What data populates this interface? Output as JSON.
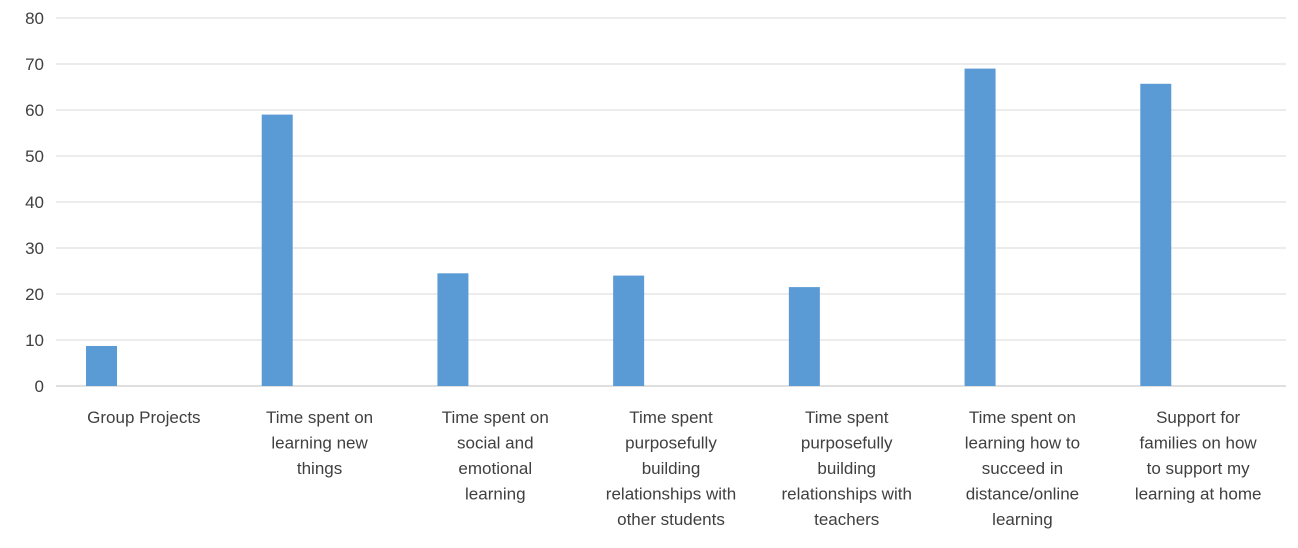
{
  "chart_data": {
    "type": "bar",
    "categories": [
      [
        "Group Projects"
      ],
      [
        "Time spent on",
        "learning new",
        "things"
      ],
      [
        "Time spent on",
        "social and",
        "emotional",
        "learning"
      ],
      [
        "Time spent",
        "purposefully",
        "building",
        "relationships with",
        "other students"
      ],
      [
        "Time spent",
        "purposefully",
        "building",
        "relationships with",
        "teachers"
      ],
      [
        "Time spent on",
        "learning how to",
        "succeed in",
        "distance/online",
        "learning"
      ],
      [
        "Support for",
        "families on how",
        "to support my",
        "learning at home"
      ]
    ],
    "values": [
      8.7,
      59,
      24.5,
      24,
      21.5,
      69,
      65.7
    ],
    "ylim": [
      0,
      80
    ],
    "yticks": [
      "0",
      "10",
      "20",
      "30",
      "40",
      "50",
      "60",
      "70",
      "80"
    ],
    "grid": true,
    "bar_color": "#5b9bd5",
    "title": "",
    "xlabel": "",
    "ylabel": ""
  }
}
